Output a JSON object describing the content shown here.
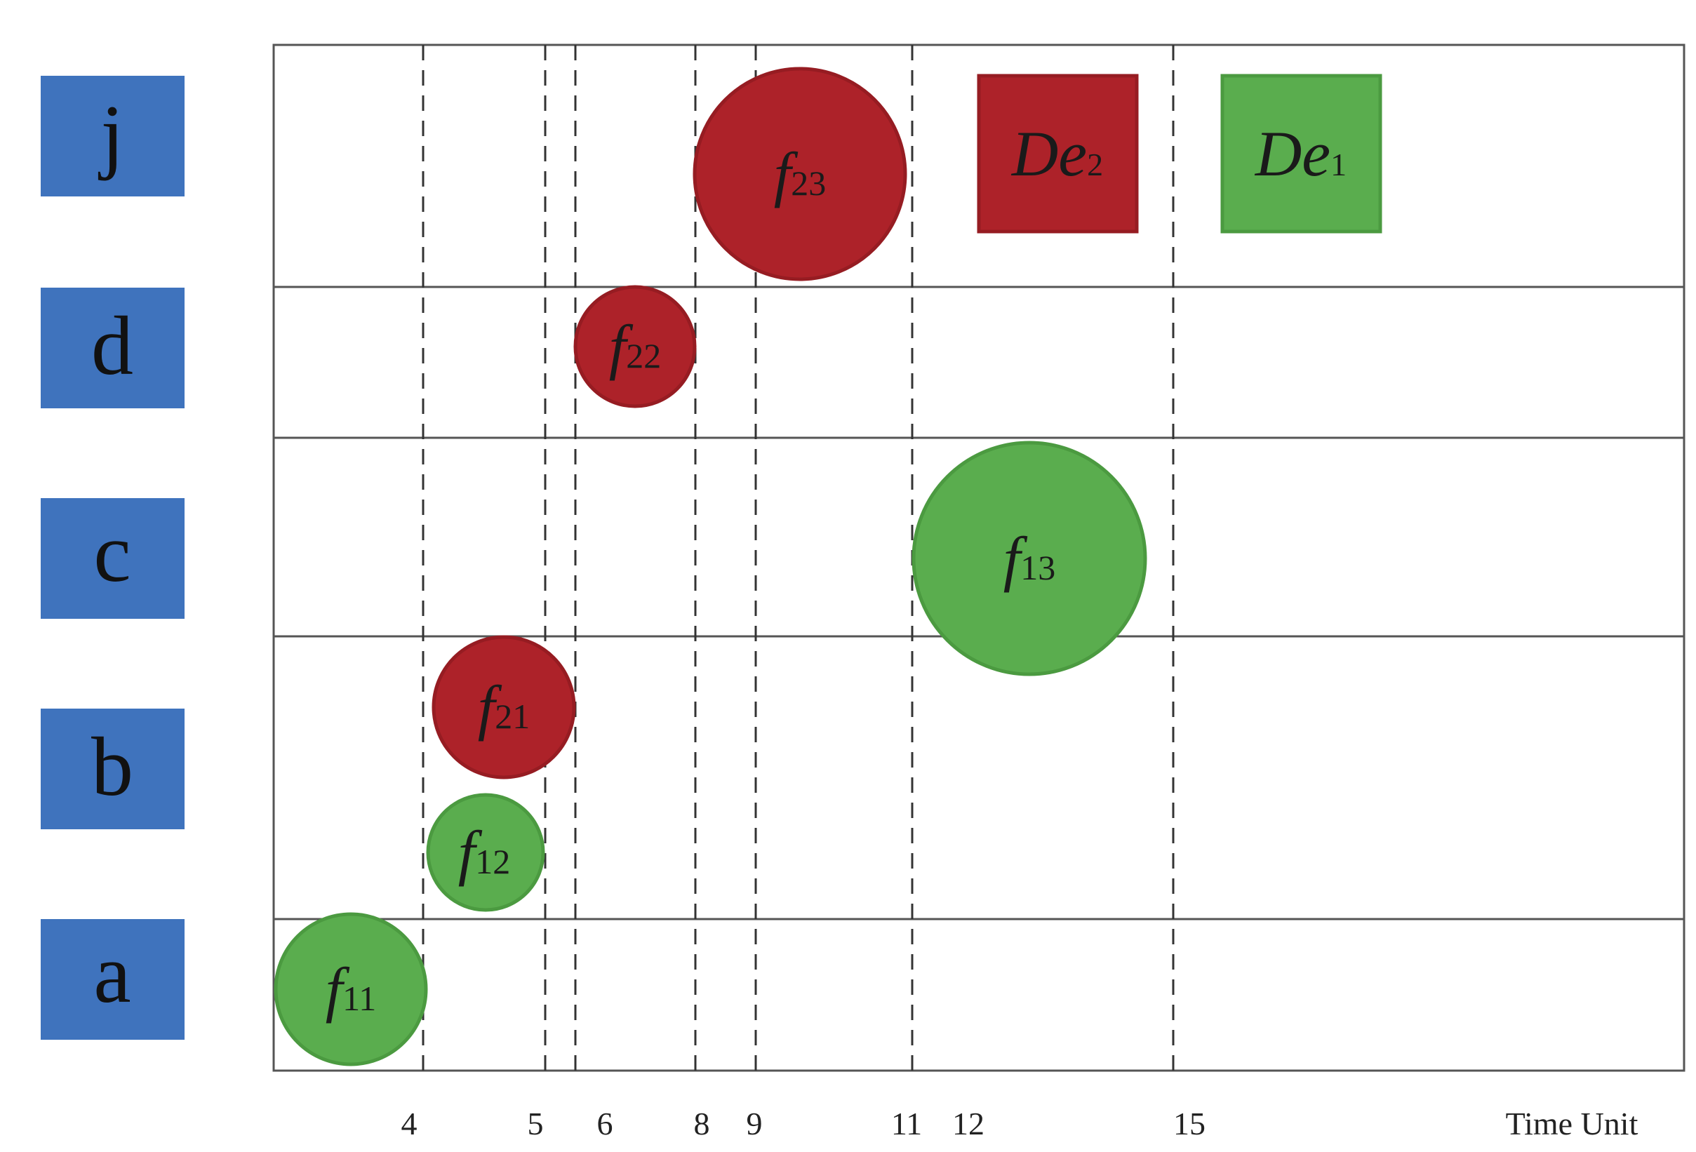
{
  "colors": {
    "row_label_bg": "#3f73bd",
    "flow_1": "#5aad4e",
    "flow_1_stroke": "#4b9a40",
    "flow_2": "#ad2229",
    "flow_2_stroke": "#961c22",
    "tick_default": "#222222",
    "tick_flow_2": "#c0282e",
    "tick_flow_1": "#3a9a78",
    "grid": "#555555"
  },
  "rows": [
    {
      "key": "j",
      "label": "j"
    },
    {
      "key": "d",
      "label": "d"
    },
    {
      "key": "c",
      "label": "c"
    },
    {
      "key": "b",
      "label": "b"
    },
    {
      "key": "a",
      "label": "a"
    }
  ],
  "time_axis": {
    "title": "Time Unit",
    "ticks": [
      {
        "label": "4",
        "color": "tick_default"
      },
      {
        "label": "5",
        "color": "tick_default"
      },
      {
        "label": "6",
        "color": "tick_default"
      },
      {
        "label": "8",
        "color": "tick_default"
      },
      {
        "label": "9",
        "color": "tick_default"
      },
      {
        "label": "11",
        "color": "tick_flow_2"
      },
      {
        "label": "12",
        "color": "tick_default"
      },
      {
        "label": "15",
        "color": "tick_flow_1"
      }
    ]
  },
  "flows": [
    {
      "name": "f",
      "sub": "11",
      "row": "a",
      "color": "flow_1"
    },
    {
      "name": "f",
      "sub": "12",
      "row": "b",
      "color": "flow_1"
    },
    {
      "name": "f",
      "sub": "21",
      "row": "b",
      "color": "flow_2"
    },
    {
      "name": "f",
      "sub": "13",
      "row": "c",
      "color": "flow_1"
    },
    {
      "name": "f",
      "sub": "22",
      "row": "d",
      "color": "flow_2"
    },
    {
      "name": "f",
      "sub": "23",
      "row": "j",
      "color": "flow_2"
    }
  ],
  "destinations": [
    {
      "name": "De",
      "sub": "2",
      "row": "j",
      "color": "flow_2"
    },
    {
      "name": "De",
      "sub": "1",
      "row": "j",
      "color": "flow_1"
    }
  ]
}
